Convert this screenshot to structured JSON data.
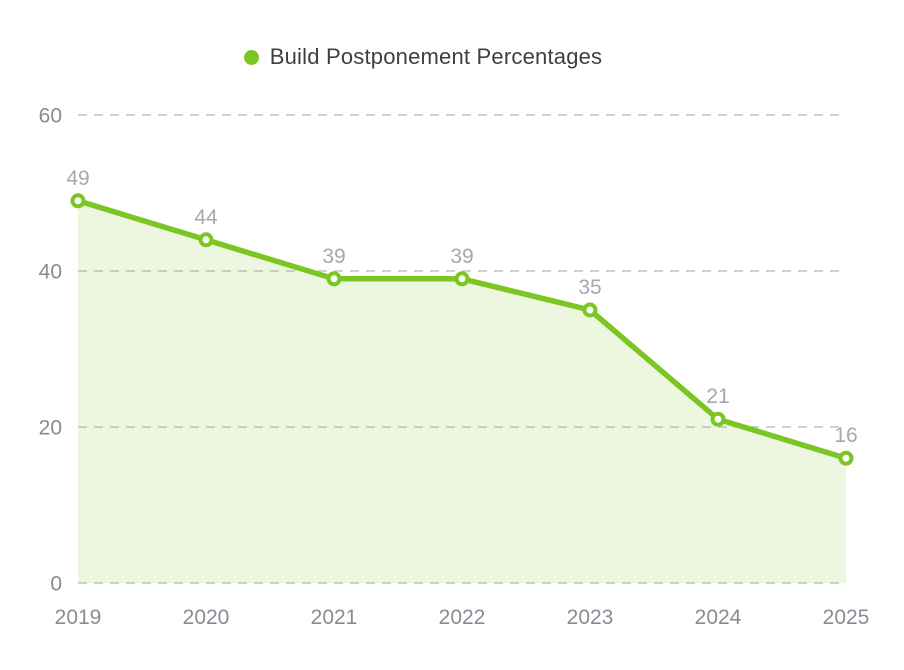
{
  "chart_data": {
    "type": "area",
    "title": "Build Postponement Percentages",
    "categories": [
      "2019",
      "2020",
      "2021",
      "2022",
      "2023",
      "2024",
      "2025"
    ],
    "values": [
      49,
      44,
      39,
      39,
      35,
      21,
      16
    ],
    "xlabel": "",
    "ylabel": "",
    "ylim": [
      0,
      60
    ],
    "yticks": [
      0,
      20,
      40,
      60
    ],
    "grid": "horizontal-dashed",
    "legend_position": "top-center",
    "show_point_labels": true,
    "colors": {
      "line": "#7CC623",
      "area_fill": "rgba(124, 198, 35, 0.14)",
      "marker_fill": "#FFFFFF",
      "grid": "#CDD2D7",
      "value_label": "#A4A8AE",
      "axis_label": "#878C93",
      "legend_text": "#3C4045",
      "background": "#FFFFFF"
    }
  }
}
